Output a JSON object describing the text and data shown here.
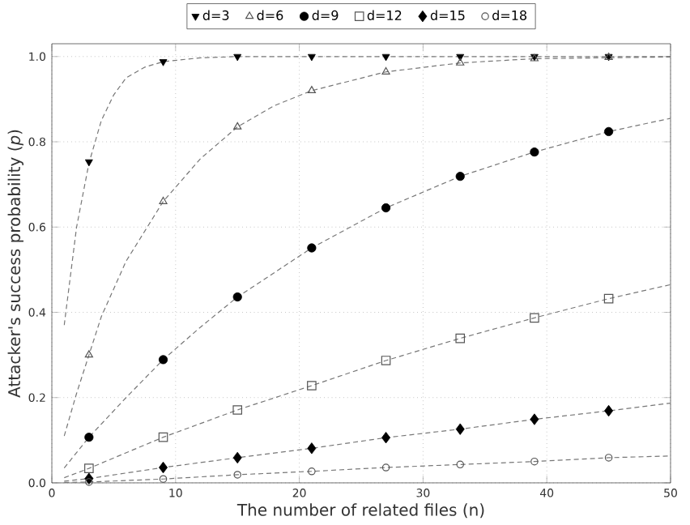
{
  "chart_data": {
    "type": "scatter",
    "xlabel": "The number of related files (n)",
    "ylabel": "Attacker's success probability (*p*)",
    "xlim": [
      0,
      50
    ],
    "ylim": [
      0,
      1.03
    ],
    "xticks": [
      0,
      10,
      20,
      30,
      40,
      50
    ],
    "yticks": [
      {
        "value": 0,
        "label": "0.0"
      },
      {
        "value": 0.2,
        "label": "0.2"
      },
      {
        "value": 0.4,
        "label": "0.4"
      },
      {
        "value": 0.6,
        "label": "0.6"
      },
      {
        "value": 0.8,
        "label": "0.8"
      },
      {
        "value": 1,
        "label": "1.0"
      }
    ],
    "grid": true,
    "legend": "top",
    "x": [
      3,
      9,
      15,
      21,
      27,
      33,
      39,
      45
    ],
    "series": [
      {
        "name": "d=3",
        "color": "#000000",
        "marker": "triangle_down",
        "values": [
          0.753,
          0.988,
          1.0,
          1.0,
          1.0,
          1.0,
          1.0,
          1.0
        ]
      },
      {
        "name": "d=6",
        "color": "#555555",
        "marker": "triangle_open",
        "values": [
          0.3,
          0.66,
          0.835,
          0.92,
          0.964,
          0.985,
          0.995,
          0.998
        ]
      },
      {
        "name": "d=9",
        "color": "#000000",
        "marker": "circle",
        "values": [
          0.107,
          0.289,
          0.436,
          0.551,
          0.645,
          0.719,
          0.776,
          0.824
        ]
      },
      {
        "name": "d=12",
        "color": "#555555",
        "marker": "square_open",
        "values": [
          0.034,
          0.107,
          0.171,
          0.228,
          0.287,
          0.339,
          0.387,
          0.432
        ]
      },
      {
        "name": "d=15",
        "color": "#000000",
        "marker": "diamond",
        "values": [
          0.01,
          0.036,
          0.059,
          0.081,
          0.106,
          0.126,
          0.149,
          0.169
        ]
      },
      {
        "name": "d=18",
        "color": "#555555",
        "marker": "circle_open",
        "values": [
          0.002,
          0.009,
          0.019,
          0.027,
          0.036,
          0.043,
          0.05,
          0.059
        ]
      },
      {
        "type": "line",
        "color": "#777777",
        "line_style": "dashed",
        "marker": "none",
        "x": [
          1,
          2,
          3,
          4,
          5,
          6,
          7.5,
          9,
          12,
          15,
          50
        ],
        "values": [
          0.37,
          0.6,
          0.75,
          0.85,
          0.91,
          0.95,
          0.975,
          0.988,
          0.997,
          1.0,
          1.0
        ]
      },
      {
        "type": "line",
        "color": "#777777",
        "line_style": "dashed",
        "marker": "none",
        "x": [
          1,
          2,
          3,
          4,
          6,
          9,
          12,
          15,
          18,
          21,
          27,
          33,
          39,
          50
        ],
        "values": [
          0.11,
          0.21,
          0.3,
          0.39,
          0.52,
          0.66,
          0.76,
          0.835,
          0.885,
          0.92,
          0.964,
          0.985,
          0.995,
          0.999
        ]
      },
      {
        "type": "line",
        "color": "#777777",
        "line_style": "dashed",
        "marker": "none",
        "x": [
          1,
          3,
          6,
          9,
          12,
          15,
          21,
          27,
          33,
          39,
          45,
          50
        ],
        "values": [
          0.035,
          0.107,
          0.2,
          0.289,
          0.365,
          0.436,
          0.551,
          0.645,
          0.719,
          0.776,
          0.824,
          0.855
        ]
      },
      {
        "type": "line",
        "color": "#777777",
        "line_style": "dashed",
        "marker": "none",
        "x": [
          1,
          3,
          9,
          15,
          21,
          27,
          33,
          39,
          45,
          50
        ],
        "values": [
          0.012,
          0.034,
          0.107,
          0.171,
          0.228,
          0.287,
          0.339,
          0.387,
          0.432,
          0.465
        ]
      },
      {
        "type": "line",
        "color": "#777777",
        "line_style": "dashed",
        "marker": "none",
        "x": [
          1,
          3,
          9,
          15,
          21,
          27,
          33,
          39,
          45,
          50
        ],
        "values": [
          0.004,
          0.01,
          0.036,
          0.059,
          0.081,
          0.106,
          0.126,
          0.149,
          0.169,
          0.187
        ]
      },
      {
        "type": "line",
        "color": "#777777",
        "line_style": "dashed",
        "marker": "none",
        "x": [
          1,
          3,
          9,
          15,
          21,
          27,
          33,
          39,
          45,
          50
        ],
        "values": [
          0.001,
          0.002,
          0.009,
          0.019,
          0.027,
          0.036,
          0.043,
          0.05,
          0.059,
          0.063
        ]
      }
    ]
  }
}
